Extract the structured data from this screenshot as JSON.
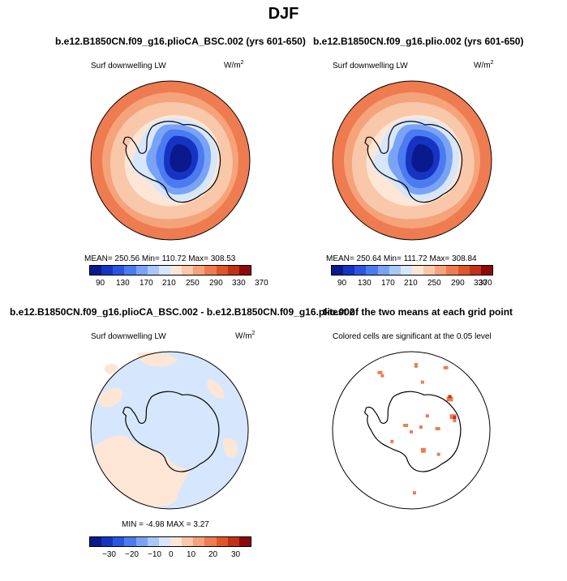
{
  "title": "DJF",
  "panels": [
    {
      "title": "b.e12.B1850CN.f09_g16.plioCA_BSC.002 (yrs 601-650)",
      "variable": "Surf downwelling LW",
      "units_base": "W/m",
      "units_exp": "2",
      "stats": "MEAN= 250.56   Min= 110.72   Max= 308.53",
      "colorbar_labels": [
        "90",
        "130",
        "170",
        "210",
        "250",
        "290",
        "330",
        "370"
      ]
    },
    {
      "title": "b.e12.B1850CN.f09_g16.plio.002 (yrs 601-650)",
      "variable": "Surf downwelling LW",
      "units_base": "W/m",
      "units_exp": "2",
      "stats": "MEAN= 250.64   Min= 111.72   Max= 308.84",
      "colorbar_labels": [
        "90",
        "130",
        "170",
        "210",
        "250",
        "290",
        "330",
        "370"
      ]
    },
    {
      "title": "b.e12.B1850CN.f09_g16.plioCA_BSC.002 - b.e12.B1850CN.f09_g16.plio.002",
      "variable": "Surf downwelling LW",
      "units_base": "W/m",
      "units_exp": "2",
      "stats": "MIN =   -4.98  MAX =    3.27",
      "colorbar_labels": [
        "−30",
        "−20",
        "−10",
        "0",
        "10",
        "20",
        "30"
      ]
    },
    {
      "title": "t-test of the two means at each grid point",
      "note": "Colored cells are significant at the 0.05 level"
    }
  ],
  "colors": {
    "palette": [
      "#0a1a8c",
      "#1733c4",
      "#2a55e0",
      "#4a7bf0",
      "#7aa3f5",
      "#a9c7f9",
      "#d6e6fc",
      "#fde6d6",
      "#f9c7a9",
      "#f5a37a",
      "#ef7b50",
      "#e0552a",
      "#c43017",
      "#8c0a0a"
    ]
  }
}
